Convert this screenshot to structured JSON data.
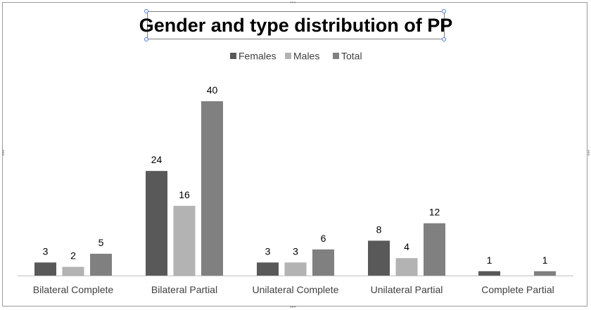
{
  "chart_data": {
    "type": "bar",
    "title": "Gender and type distribution of PP",
    "categories": [
      "Bilateral Complete",
      "Bilateral Partial",
      "Unilateral Complete",
      "Unilateral Partial",
      "Complete Partial"
    ],
    "series": [
      {
        "name": "Females",
        "values": [
          3,
          24,
          3,
          8,
          1
        ],
        "color": "#595959"
      },
      {
        "name": "Males",
        "values": [
          2,
          16,
          3,
          4,
          null
        ],
        "color": "#b3b3b3"
      },
      {
        "name": "Total",
        "values": [
          5,
          40,
          6,
          12,
          1
        ],
        "color": "#808080"
      }
    ],
    "ylim": [
      0,
      40
    ],
    "legend": "top-center",
    "grid": false,
    "data_labels": true
  }
}
